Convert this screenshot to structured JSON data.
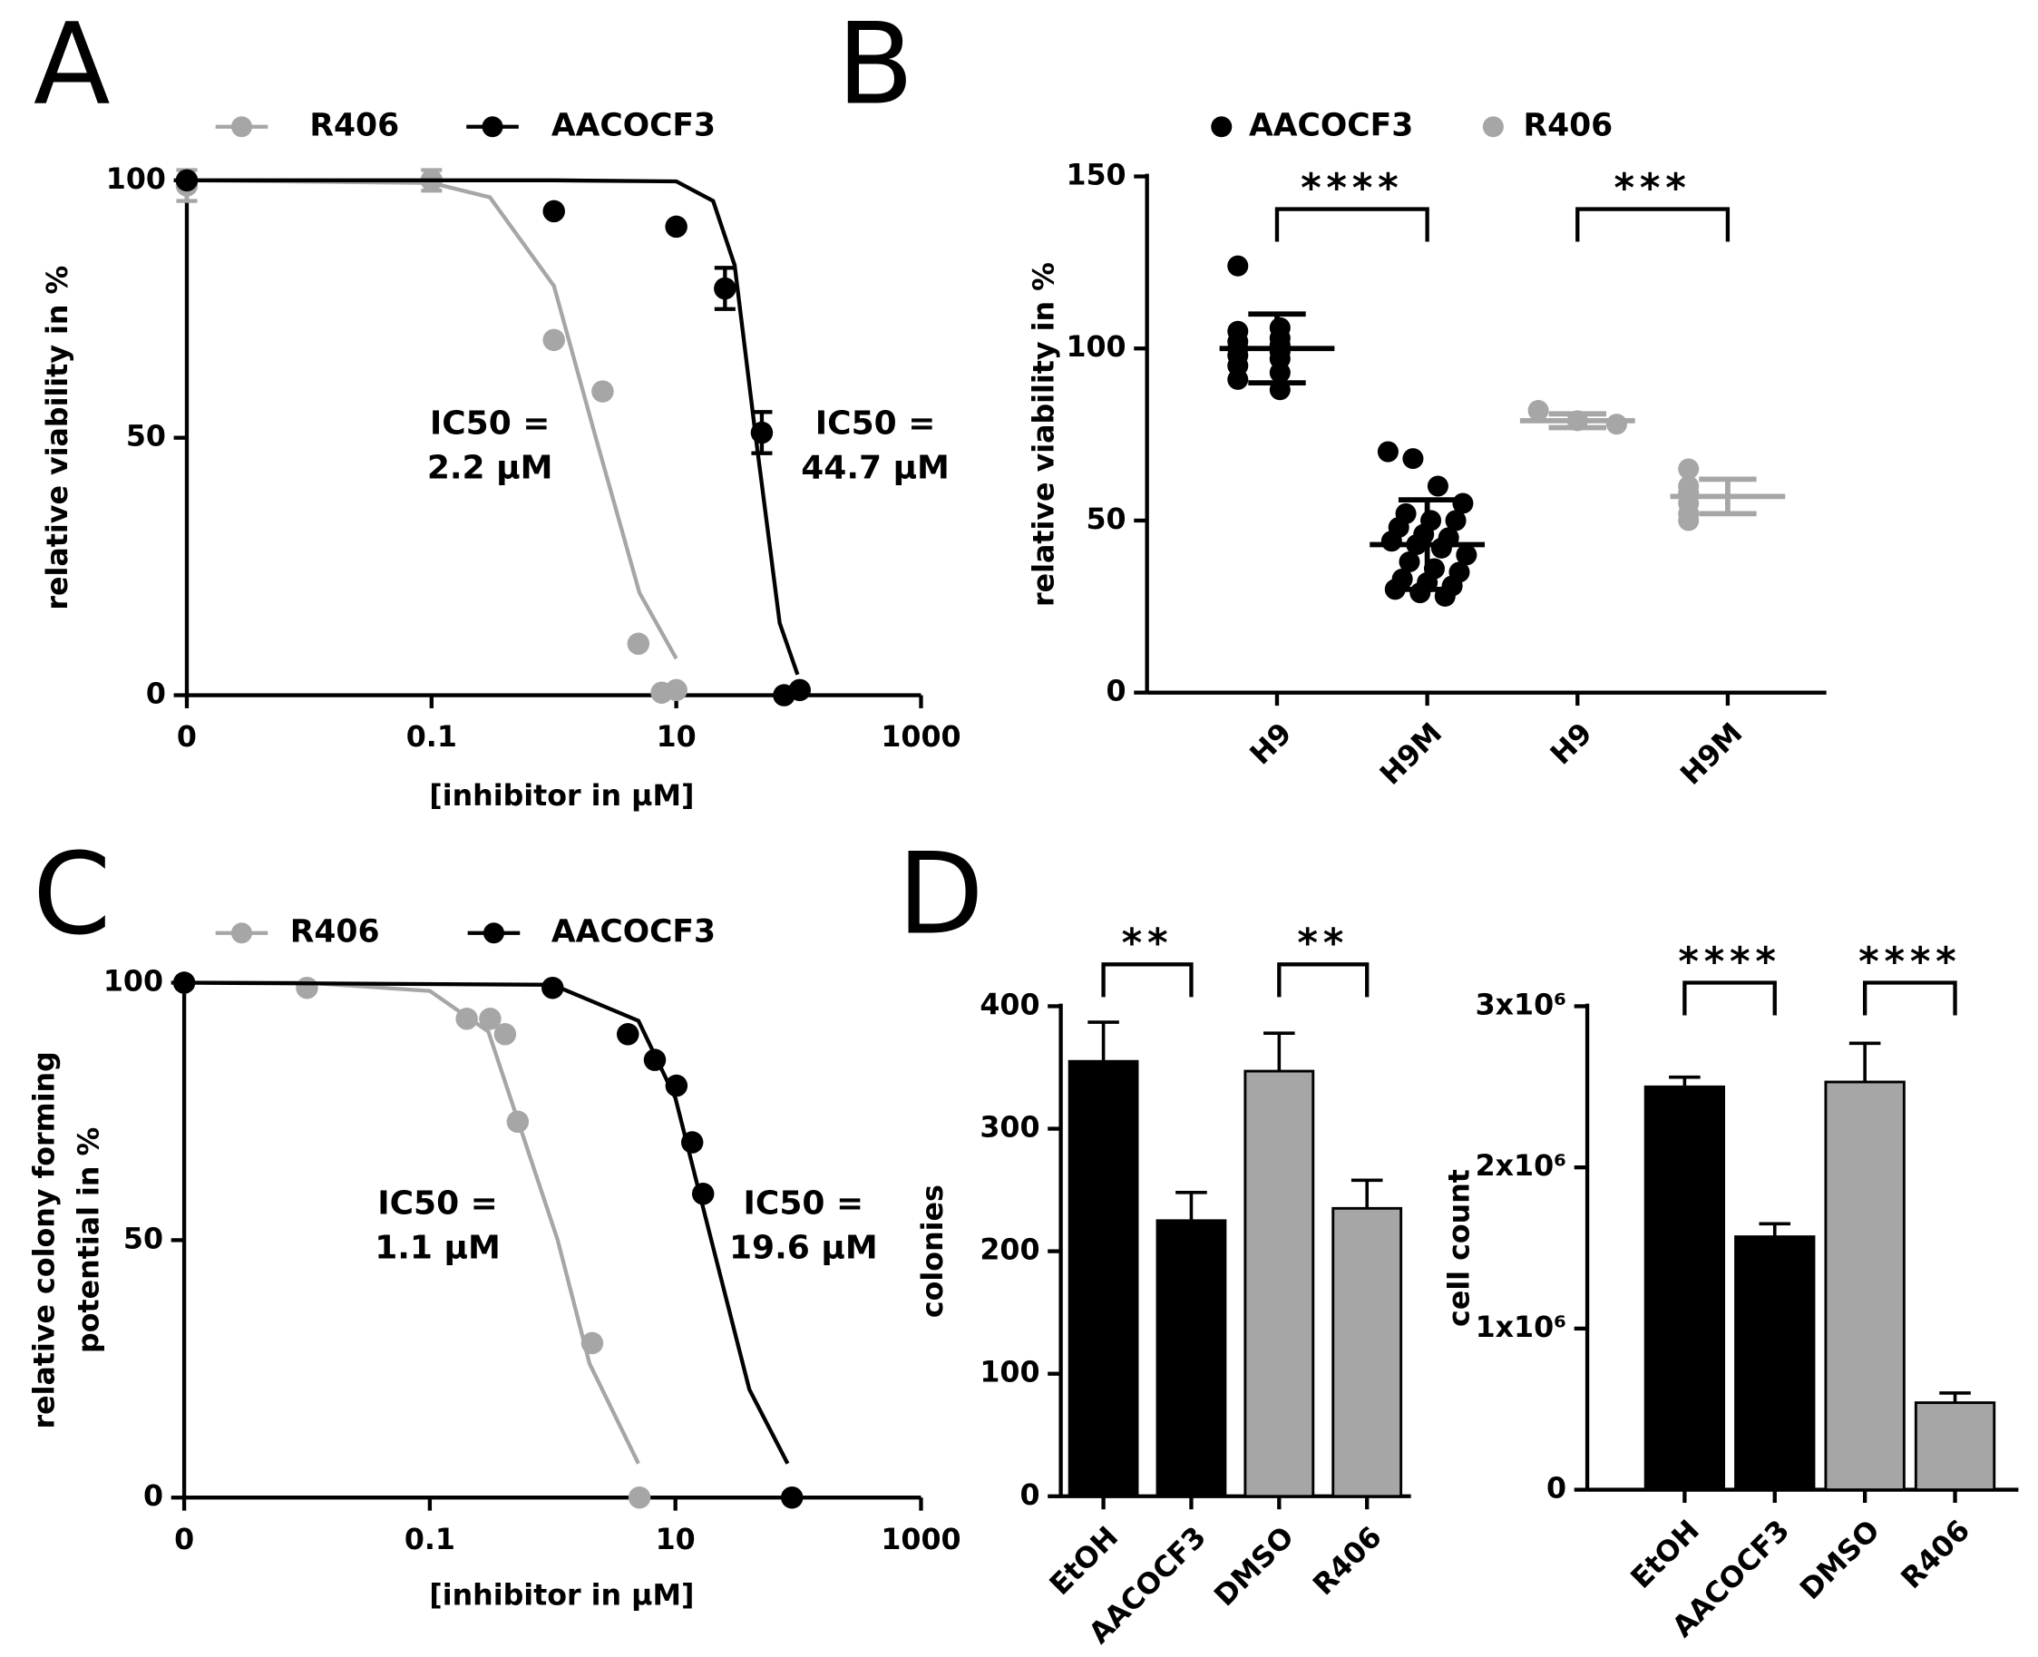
{
  "chart_data": [
    {
      "type": "dose_response",
      "panel": "A",
      "xlabel": "[inhibitor in µM]",
      "ylabel": "relative viability in %",
      "xlog": true,
      "xlim": [
        0.001,
        1000
      ],
      "xticks": [
        {
          "value": 0.001,
          "label": "0"
        },
        {
          "value": 0.1,
          "label": "0.1"
        },
        10,
        1000
      ],
      "ylim": [
        0,
        100
      ],
      "yticks": [
        0,
        50,
        100
      ],
      "grid": false,
      "legend": "top",
      "series": [
        {
          "name": "R406",
          "color": "#a6a6a6",
          "x": [
            0.001,
            0.1,
            1.0,
            2.5,
            4.9,
            7.6,
            10
          ],
          "values": [
            99,
            100,
            69,
            59,
            10,
            0.5,
            1
          ],
          "errors": [
            3,
            2,
            0,
            0,
            0,
            0,
            0
          ],
          "fit_x": [
            0.001,
            0.1,
            0.3,
            1,
            2.2,
            5,
            10
          ],
          "fit_y": [
            100,
            99.5,
            96.7,
            79.5,
            50,
            19.9,
            7.1
          ],
          "annotation": [
            "IC50 =",
            "2.2 µM"
          ]
        },
        {
          "name": "AACOCF3",
          "color": "#000000",
          "x": [
            0.001,
            1.0,
            10,
            25,
            50,
            76,
            102
          ],
          "values": [
            100,
            94,
            91,
            79,
            51,
            0,
            1
          ],
          "errors": [
            0,
            0,
            0,
            4,
            4,
            0,
            0
          ],
          "fit_x": [
            0.001,
            1,
            10,
            20,
            30,
            44.7,
            70,
            98
          ],
          "fit_y": [
            100,
            100,
            99.8,
            96,
            83.5,
            50,
            14,
            4
          ],
          "annotation": [
            "IC50 =",
            "44.7 µM"
          ]
        }
      ]
    },
    {
      "type": "strip",
      "panel": "B",
      "ylabel": "relative viability in %",
      "categories": [
        "H9",
        "H9M",
        "H9",
        "H9M"
      ],
      "ylim": [
        0,
        150
      ],
      "yticks": [
        0,
        50,
        100,
        150
      ],
      "grid": false,
      "legend": "top",
      "significance": [
        "****",
        "***"
      ],
      "series": [
        {
          "name": "AACOCF3",
          "color": "#000000",
          "values": [
            [
              124,
              106,
              105,
              103,
              102,
              101,
              100,
              99,
              98,
              97,
              95,
              93,
              91,
              88
            ],
            [
              70,
              68,
              60,
              55,
              52,
              50,
              50,
              48,
              46,
              45,
              44,
              43,
              42,
              40,
              38,
              36,
              35,
              33,
              32,
              31,
              30,
              29,
              28
            ],
            null,
            null
          ],
          "means": [
            100,
            43,
            null,
            null
          ],
          "sds": [
            10,
            13,
            null,
            null
          ]
        },
        {
          "name": "R406",
          "color": "#a6a6a6",
          "values": [
            null,
            null,
            [
              82,
              79,
              78
            ],
            [
              65,
              60,
              58,
              57,
              55,
              52,
              50
            ]
          ],
          "means": [
            null,
            null,
            79,
            57
          ],
          "sds": [
            null,
            null,
            2,
            5
          ]
        }
      ]
    },
    {
      "type": "dose_response",
      "panel": "C",
      "xlabel": "[inhibitor in µM]",
      "ylabel": [
        "relative colony forming",
        "potential in %"
      ],
      "xlog": true,
      "xlim": [
        0.001,
        1000
      ],
      "xticks": [
        {
          "value": 0.001,
          "label": "0"
        },
        {
          "value": 0.1,
          "label": "0.1"
        },
        10,
        1000
      ],
      "ylim": [
        0,
        100
      ],
      "yticks": [
        0,
        50,
        100
      ],
      "grid": false,
      "legend": "top",
      "series": [
        {
          "name": "R406",
          "color": "#a6a6a6",
          "x": [
            0.001,
            0.01,
            0.2,
            0.31,
            0.41,
            0.52,
            2.1,
            5.1
          ],
          "values": [
            100,
            99,
            93,
            93,
            90,
            73,
            30,
            0
          ],
          "fit_x": [
            0.001,
            0.01,
            0.1,
            0.3,
            1.1,
            2,
            5
          ],
          "fit_y": [
            100,
            100,
            98.4,
            90.5,
            50,
            26,
            6.6
          ],
          "annotation": [
            "IC50 =",
            "1.1 µM"
          ]
        },
        {
          "name": "AACOCF3",
          "color": "#000000",
          "x": [
            0.001,
            1.0,
            4.1,
            6.8,
            10.2,
            13.7,
            16.8,
            89
          ],
          "values": [
            100,
            99,
            90,
            85,
            80,
            69,
            59,
            0
          ],
          "fit_x": [
            0.001,
            1,
            5,
            10,
            19.6,
            40,
            82
          ],
          "fit_y": [
            100,
            99.6,
            92.6,
            77.6,
            50,
            21,
            6.6
          ],
          "annotation": [
            "IC50 =",
            "19.6 µM"
          ]
        }
      ]
    },
    {
      "type": "bar",
      "panel": "D",
      "ylabel": "colonies",
      "categories": [
        "EtOH",
        "AACOCF3",
        "DMSO",
        "R406"
      ],
      "values": [
        355,
        225,
        347,
        235
      ],
      "errors": [
        32,
        23,
        31,
        23
      ],
      "colors": [
        "#000000",
        "#000000",
        "#a6a6a6",
        "#a6a6a6"
      ],
      "ylim": [
        0,
        400
      ],
      "yticks": [
        0,
        100,
        200,
        300,
        400
      ],
      "grid": false,
      "significance": [
        "**",
        "**"
      ]
    },
    {
      "type": "bar",
      "ylabel": "cell count",
      "categories": [
        "EtOH",
        "AACOCF3",
        "DMSO",
        "R406"
      ],
      "values": [
        2500000,
        1570000,
        2530000,
        540000
      ],
      "errors": [
        60000,
        80000,
        240000,
        60000
      ],
      "colors": [
        "#000000",
        "#000000",
        "#a6a6a6",
        "#a6a6a6"
      ],
      "ylim": [
        0,
        3000000
      ],
      "yticks": [
        0,
        {
          "value": 1000000,
          "label": "1x10⁶"
        },
        {
          "value": 2000000,
          "label": "2x10⁶"
        },
        {
          "value": 3000000,
          "label": "3x10⁶"
        }
      ],
      "grid": false,
      "significance": [
        "****",
        "****"
      ]
    }
  ]
}
